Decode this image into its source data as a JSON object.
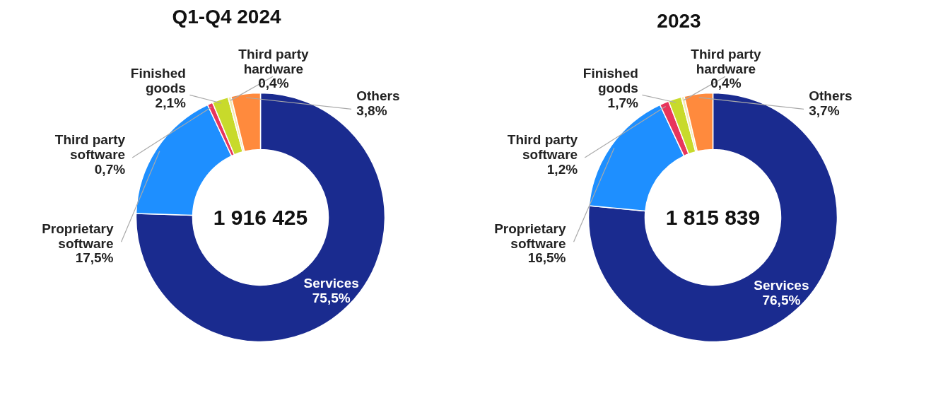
{
  "chart_data": [
    {
      "type": "donut",
      "title": "Q1-Q4 2024",
      "categories": [
        "Services",
        "Proprietary software",
        "Third party software",
        "Finished goods",
        "Third party hardware",
        "Others"
      ],
      "values": [
        75.5,
        17.5,
        0.7,
        2.1,
        0.4,
        3.8
      ],
      "colors": [
        "#1a2b8f",
        "#1e8fff",
        "#e8355c",
        "#c8da2b",
        "#f3e9b5",
        "#ff8a3d"
      ],
      "value_labels": [
        "75,5%",
        "17,5%",
        "0,7%",
        "2,1%",
        "0,4%",
        "3,8%"
      ],
      "annotations": [
        "1 916 425"
      ]
    },
    {
      "type": "donut",
      "title": "2023",
      "categories": [
        "Services",
        "Proprietary software",
        "Third party software",
        "Finished goods",
        "Third party hardware",
        "Others"
      ],
      "values": [
        76.5,
        16.5,
        1.2,
        1.7,
        0.4,
        3.7
      ],
      "colors": [
        "#1a2b8f",
        "#1e8fff",
        "#e8355c",
        "#c8da2b",
        "#f3e9b5",
        "#ff8a3d"
      ],
      "value_labels": [
        "76,5%",
        "16,5%",
        "1,2%",
        "1,7%",
        "0,4%",
        "3,7%"
      ],
      "annotations": [
        "1 815 839"
      ]
    }
  ]
}
